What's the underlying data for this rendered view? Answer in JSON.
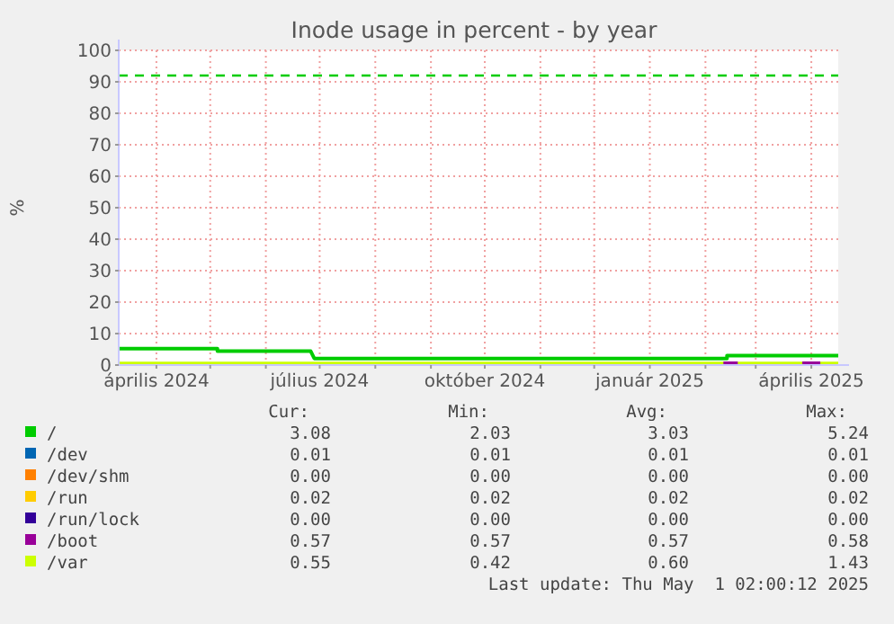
{
  "chart_data": {
    "type": "line",
    "title": "Inode usage in percent - by year",
    "ylabel": "%",
    "xlim": [
      "2024-03-11",
      "2025-04-16"
    ],
    "xticks": [
      {
        "value": "2024-04-01",
        "label": "április 2024"
      },
      {
        "value": "2024-05-01",
        "label": null
      },
      {
        "value": "2024-06-01",
        "label": null
      },
      {
        "value": "2024-07-01",
        "label": "július 2024"
      },
      {
        "value": "2024-08-01",
        "label": null
      },
      {
        "value": "2024-09-01",
        "label": null
      },
      {
        "value": "2024-10-01",
        "label": "október 2024"
      },
      {
        "value": "2024-11-01",
        "label": null
      },
      {
        "value": "2024-12-01",
        "label": null
      },
      {
        "value": "2025-01-01",
        "label": "január 2025"
      },
      {
        "value": "2025-02-01",
        "label": null
      },
      {
        "value": "2025-03-01",
        "label": null
      },
      {
        "value": "2025-04-01",
        "label": "április 2025"
      }
    ],
    "ylim": [
      0,
      100
    ],
    "yticks": [
      0,
      10,
      20,
      30,
      40,
      50,
      60,
      70,
      80,
      90,
      100
    ],
    "grid": true,
    "legend": "bottom",
    "ref_lines": [
      {
        "axis": "y",
        "value": 92,
        "color": "#00cc00",
        "line_style": "dashed"
      }
    ],
    "series": [
      {
        "name": "/",
        "color": "#00cc00",
        "x": [
          "2024-03-11",
          "2024-05-05",
          "2024-05-05",
          "2024-06-26",
          "2024-06-28",
          "2025-02-13",
          "2025-02-13",
          "2025-04-16"
        ],
        "values": [
          5.2,
          5.2,
          4.4,
          4.4,
          2.1,
          2.1,
          3.0,
          3.0
        ]
      },
      {
        "name": "/dev",
        "color": "#0066b3"
      },
      {
        "name": "/dev/shm",
        "color": "#ff8000"
      },
      {
        "name": "/run",
        "color": "#ffcc00"
      },
      {
        "name": "/run/lock",
        "color": "#330099"
      },
      {
        "name": "/boot",
        "color": "#990099",
        "x": [
          "2025-02-11",
          "2025-02-19",
          "2025-03-10",
          "2025-03-27",
          "2025-04-06"
        ],
        "values": [
          0.6,
          0.6,
          null,
          0.6,
          0.6
        ]
      },
      {
        "name": "/var",
        "color": "#ccff00",
        "x": [
          "2024-03-11",
          "2025-04-16"
        ],
        "values": [
          0.5,
          0.5
        ]
      }
    ],
    "annotations": [
      "Cur:",
      "Min:",
      "Avg:",
      "Max:",
      "3.08",
      "2.03",
      "3.03",
      "5.24",
      "0.01",
      "0.01",
      "0.01",
      "0.01",
      "0.00",
      "0.00",
      "0.00",
      "0.00",
      "0.02",
      "0.02",
      "0.02",
      "0.02",
      "0.00",
      "0.00",
      "0.00",
      "0.00",
      "0.57",
      "0.57",
      "0.57",
      "0.58",
      "0.55",
      "0.42",
      "0.60",
      "1.43",
      "Last update: Thu May  1 02:00:12 2025"
    ]
  }
}
